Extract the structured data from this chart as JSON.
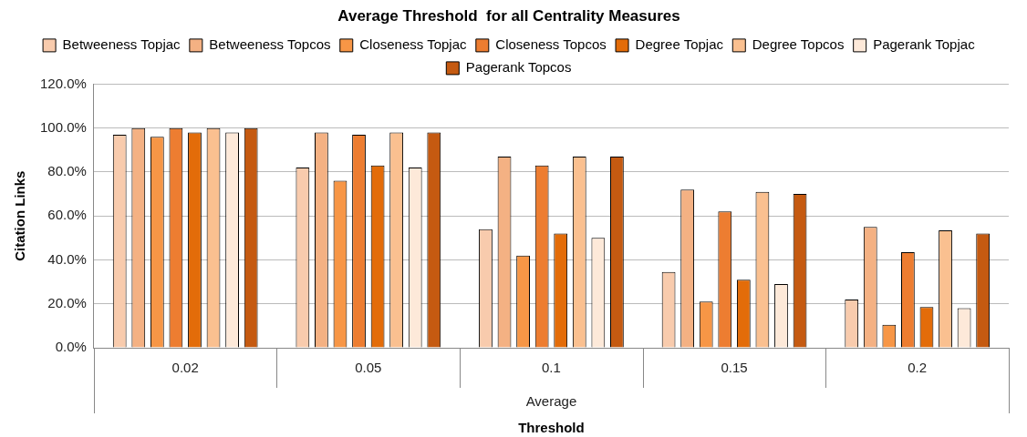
{
  "chart_data": {
    "type": "bar",
    "title": "Average Threshold  for all Centrality Measures",
    "xlabel": "Threshold",
    "ylabel": "Citation Links",
    "categories": [
      "0.02",
      "0.05",
      "0.1",
      "0.15",
      "0.2"
    ],
    "annotations": [
      "Average"
    ],
    "series": [
      {
        "name": "Betweeness Topjac",
        "color": "#f8cbad",
        "values": [
          97,
          82,
          54,
          34.5,
          22
        ]
      },
      {
        "name": "Betweeness Topcos",
        "color": "#f4b183",
        "values": [
          100,
          98,
          87,
          72,
          55
        ]
      },
      {
        "name": "Closeness Topjac",
        "color": "#f79646",
        "values": [
          96,
          76,
          42,
          21,
          10.5
        ]
      },
      {
        "name": "Closeness Topcos",
        "color": "#ed7d31",
        "values": [
          100,
          97,
          83,
          62,
          43.5
        ]
      },
      {
        "name": "Degree Topjac",
        "color": "#e36c09",
        "values": [
          98,
          83,
          52,
          31,
          18.5
        ]
      },
      {
        "name": "Degree Topcos",
        "color": "#fac090",
        "values": [
          100,
          98,
          87,
          71,
          53.5
        ]
      },
      {
        "name": "Pagerank Topjac",
        "color": "#fde9d9",
        "values": [
          98,
          82,
          50,
          29,
          18
        ]
      },
      {
        "name": "Pagerank Topcos",
        "color": "#c55a11",
        "values": [
          100,
          98,
          87,
          70,
          52
        ]
      }
    ],
    "ylim": [
      0,
      120
    ],
    "yticks": [
      {
        "value": 0,
        "label": "0.0%"
      },
      {
        "value": 20,
        "label": "20.0%"
      },
      {
        "value": 40,
        "label": "40.0%"
      },
      {
        "value": 60,
        "label": "60.0%"
      },
      {
        "value": 80,
        "label": "80.0%"
      },
      {
        "value": 100,
        "label": "100.0%"
      },
      {
        "value": 120,
        "label": "120.0%"
      }
    ],
    "grid": "y",
    "legend": "top"
  }
}
